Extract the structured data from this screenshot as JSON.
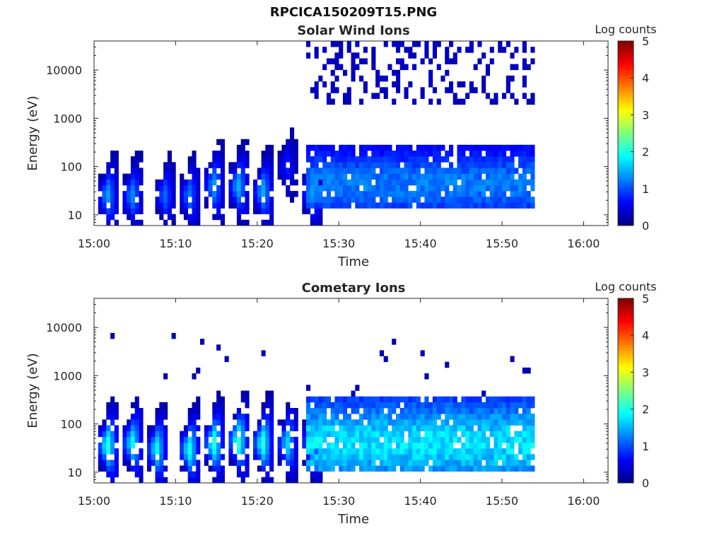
{
  "figure": {
    "title": "RPCICA150209T15.PNG"
  },
  "colors": {
    "colormap": [
      "#00007f",
      "#0000ff",
      "#007fff",
      "#00ffff",
      "#7fff7f",
      "#ffff00",
      "#ff7f00",
      "#ff0000",
      "#7f0000"
    ],
    "axis": "#262626",
    "background": "#ffffff"
  },
  "chart_data": [
    {
      "type": "heatmap",
      "title": "Solar Wind Ions",
      "xlabel": "Time",
      "ylabel": "Energy (eV)",
      "yscale": "log",
      "xlim": [
        "15:00",
        "16:03"
      ],
      "ylim": [
        6,
        40000
      ],
      "xticks": [
        "15:00",
        "15:10",
        "15:20",
        "15:30",
        "15:40",
        "15:50",
        "16:00"
      ],
      "yticks": [
        {
          "label": "10",
          "value": 10
        },
        {
          "label": "100",
          "value": 100
        },
        {
          "label": "1000",
          "value": 1000
        },
        {
          "label": "10000",
          "value": 10000
        }
      ],
      "colorbar": {
        "label": "Log counts",
        "range": [
          0,
          5
        ],
        "ticks": [
          "0",
          "1",
          "2",
          "3",
          "4",
          "5"
        ]
      },
      "data_extent": {
        "start": "15:00",
        "end": "15:54"
      },
      "bursts": [
        {
          "time": "15:01",
          "peak_energy_eV": 25,
          "max_log_counts": 1.5
        },
        {
          "time": "15:04",
          "peak_energy_eV": 25,
          "max_log_counts": 1.4
        },
        {
          "time": "15:08",
          "peak_energy_eV": 25,
          "max_log_counts": 1.2
        },
        {
          "time": "15:11",
          "peak_energy_eV": 25,
          "max_log_counts": 1.3
        },
        {
          "time": "15:14",
          "peak_energy_eV": 40,
          "max_log_counts": 1.5
        },
        {
          "time": "15:17",
          "peak_energy_eV": 40,
          "max_log_counts": 1.6
        },
        {
          "time": "15:20",
          "peak_energy_eV": 30,
          "max_log_counts": 1.6
        },
        {
          "time": "15:23",
          "peak_energy_eV": 100,
          "max_log_counts": 0.8
        },
        {
          "time": "15:26",
          "peak_energy_eV": 30,
          "max_log_counts": 1.5
        }
      ],
      "continuous_band": {
        "start": "15:26",
        "end": "15:54",
        "energy_range_eV": [
          15,
          300
        ],
        "max_log_counts": 1.4
      },
      "high_energy_lines": {
        "start": "15:26",
        "end": "15:54",
        "energy_range_eV": [
          2000,
          40000
        ],
        "log_counts": 0.3
      }
    },
    {
      "type": "heatmap",
      "title": "Cometary Ions",
      "xlabel": "Time",
      "ylabel": "Energy (eV)",
      "yscale": "log",
      "xlim": [
        "15:00",
        "16:03"
      ],
      "ylim": [
        6,
        40000
      ],
      "xticks": [
        "15:00",
        "15:10",
        "15:20",
        "15:30",
        "15:40",
        "15:50",
        "16:00"
      ],
      "yticks": [
        {
          "label": "10",
          "value": 10
        },
        {
          "label": "100",
          "value": 100
        },
        {
          "label": "1000",
          "value": 1000
        },
        {
          "label": "10000",
          "value": 10000
        }
      ],
      "colorbar": {
        "label": "Log counts",
        "range": [
          0,
          5
        ],
        "ticks": [
          "0",
          "1",
          "2",
          "3",
          "4",
          "5"
        ]
      },
      "data_extent": {
        "start": "15:00",
        "end": "15:54"
      },
      "bursts": [
        {
          "time": "15:01",
          "peak_energy_eV": 35,
          "max_log_counts": 2.2
        },
        {
          "time": "15:04",
          "peak_energy_eV": 40,
          "max_log_counts": 2.0
        },
        {
          "time": "15:07",
          "peak_energy_eV": 30,
          "max_log_counts": 2.0
        },
        {
          "time": "15:11",
          "peak_energy_eV": 30,
          "max_log_counts": 2.1
        },
        {
          "time": "15:14",
          "peak_energy_eV": 40,
          "max_log_counts": 2.2
        },
        {
          "time": "15:17",
          "peak_energy_eV": 45,
          "max_log_counts": 2.3
        },
        {
          "time": "15:20",
          "peak_energy_eV": 40,
          "max_log_counts": 2.2
        },
        {
          "time": "15:23",
          "peak_energy_eV": 40,
          "max_log_counts": 1.8
        },
        {
          "time": "15:26",
          "peak_energy_eV": 40,
          "max_log_counts": 1.9
        }
      ],
      "continuous_band": {
        "start": "15:26",
        "end": "15:54",
        "energy_range_eV": [
          10,
          400
        ],
        "max_log_counts": 2.0
      }
    }
  ]
}
